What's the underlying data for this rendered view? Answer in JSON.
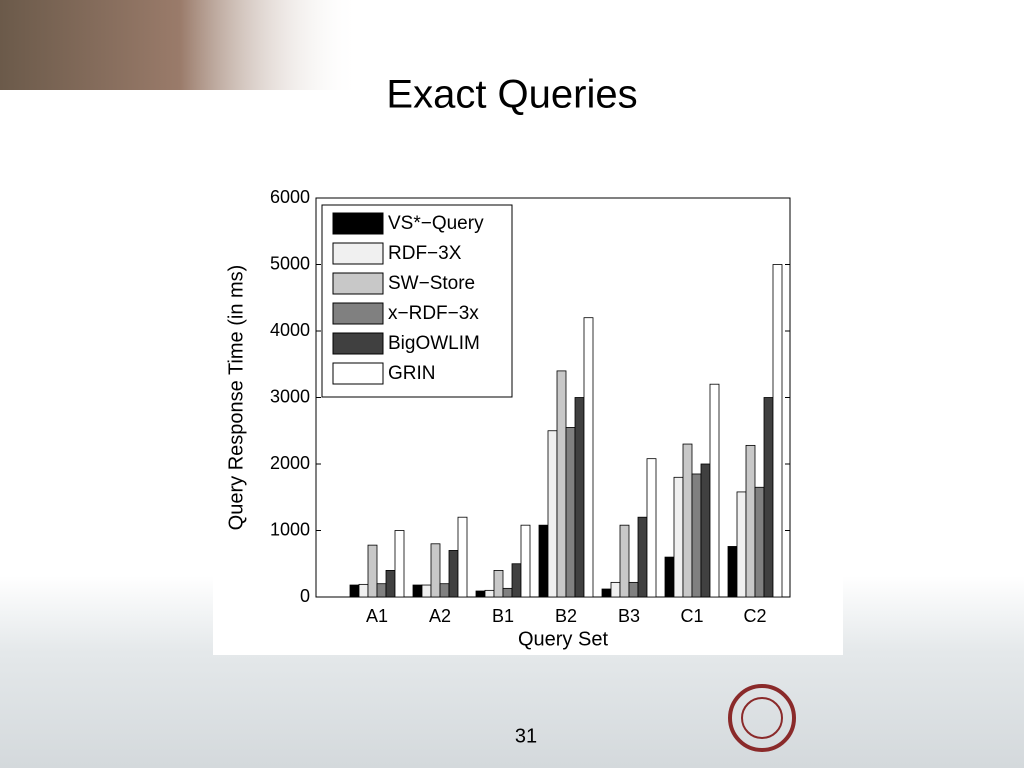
{
  "slide_title": "Exact Queries",
  "page_number": "31",
  "chart_data": {
    "type": "bar",
    "ylabel": "Query Response Time (in ms)",
    "xlabel": "Query Set",
    "categories": [
      "A1",
      "A2",
      "B1",
      "B2",
      "B3",
      "C1",
      "C2"
    ],
    "series": [
      {
        "name": "VS*−Query",
        "color": "#000000",
        "values": [
          180,
          180,
          90,
          1080,
          120,
          600,
          760
        ]
      },
      {
        "name": "RDF−3X",
        "color": "#f0f0f0",
        "values": [
          190,
          180,
          100,
          2500,
          220,
          1800,
          1580
        ]
      },
      {
        "name": "SW−Store",
        "color": "#c8c8c8",
        "values": [
          780,
          800,
          400,
          3400,
          1080,
          2300,
          2280
        ]
      },
      {
        "name": "x−RDF−3x",
        "color": "#808080",
        "values": [
          200,
          200,
          130,
          2550,
          220,
          1850,
          1650
        ]
      },
      {
        "name": "BigOWLIM",
        "color": "#404040",
        "values": [
          400,
          700,
          500,
          3000,
          1200,
          2000,
          3000
        ]
      },
      {
        "name": "GRIN",
        "color": "#ffffff",
        "values": [
          1000,
          1200,
          1080,
          4200,
          2080,
          3200,
          5000
        ]
      }
    ],
    "ylim": [
      0,
      6000
    ],
    "yticks": [
      0,
      1000,
      2000,
      3000,
      4000,
      5000,
      6000
    ],
    "legend": "upper left"
  }
}
